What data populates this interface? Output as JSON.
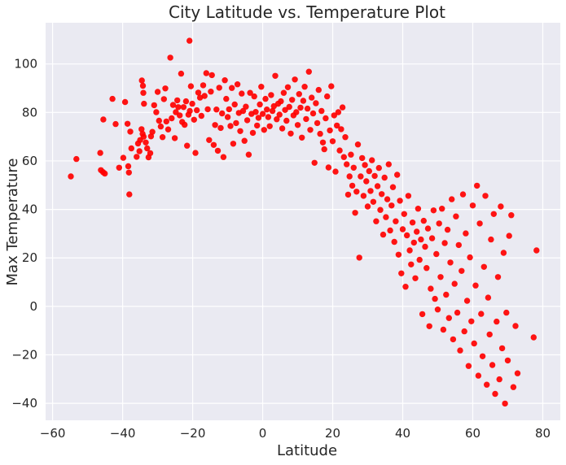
{
  "chart_data": {
    "type": "scatter",
    "title": "City Latitude vs. Temperature Plot",
    "xlabel": "Latitude",
    "ylabel": "Max Temperature",
    "xlim": [
      -62,
      85
    ],
    "ylim": [
      -47,
      117
    ],
    "x_ticks": [
      -60,
      -40,
      -20,
      0,
      20,
      40,
      60,
      80
    ],
    "y_ticks": [
      -40,
      -20,
      0,
      20,
      40,
      60,
      80,
      100
    ],
    "x_tick_labels": [
      "−60",
      "−40",
      "−20",
      "0",
      "20",
      "40",
      "60",
      "80"
    ],
    "y_tick_labels": [
      "−40",
      "−20",
      "0",
      "20",
      "40",
      "60",
      "80",
      "100"
    ],
    "grid": true,
    "colors": {
      "point": "#ff0000",
      "background": "#eaeaf2",
      "grid": "#ffffff"
    },
    "points": [
      [
        -54.8,
        53.6
      ],
      [
        -53.2,
        60.8
      ],
      [
        -46.4,
        63.3
      ],
      [
        -46.2,
        56.2
      ],
      [
        -45.6,
        55.4
      ],
      [
        -45.1,
        54.8
      ],
      [
        -45.5,
        77.1
      ],
      [
        -42.9,
        85.6
      ],
      [
        -42.0,
        75.2
      ],
      [
        -41.0,
        57.2
      ],
      [
        -39.8,
        61.3
      ],
      [
        -39.3,
        84.3
      ],
      [
        -38.6,
        75.3
      ],
      [
        -38.4,
        57.8
      ],
      [
        -38.2,
        55.2
      ],
      [
        -38.1,
        46.2
      ],
      [
        -37.8,
        72.1
      ],
      [
        -37.5,
        65.2
      ],
      [
        -36.0,
        61.7
      ],
      [
        -35.6,
        67.2
      ],
      [
        -35.2,
        64.0
      ],
      [
        -35.0,
        68.6
      ],
      [
        -34.6,
        73.1
      ],
      [
        -34.3,
        71.2
      ],
      [
        -34.0,
        70.0
      ],
      [
        -34.1,
        88.1
      ],
      [
        -34.5,
        93.2
      ],
      [
        -34.2,
        91.0
      ],
      [
        -33.9,
        83.6
      ],
      [
        -33.4,
        67.6
      ],
      [
        -33.0,
        65.2
      ],
      [
        -32.6,
        61.5
      ],
      [
        -32.1,
        63.2
      ],
      [
        -31.9,
        70.1
      ],
      [
        -31.5,
        72.0
      ],
      [
        -31.0,
        83.0
      ],
      [
        -30.4,
        80.1
      ],
      [
        -30.0,
        88.5
      ],
      [
        -29.6,
        76.6
      ],
      [
        -29.1,
        74.2
      ],
      [
        -28.6,
        69.8
      ],
      [
        -28.2,
        85.5
      ],
      [
        -27.8,
        89.9
      ],
      [
        -27.5,
        76.3
      ],
      [
        -27.0,
        73.0
      ],
      [
        -26.4,
        102.6
      ],
      [
        -26.0,
        77.6
      ],
      [
        -25.6,
        83.1
      ],
      [
        -25.1,
        69.4
      ],
      [
        -24.8,
        80.1
      ],
      [
        -24.4,
        85.0
      ],
      [
        -24.1,
        82.2
      ],
      [
        -23.7,
        78.8
      ],
      [
        -23.3,
        96.0
      ],
      [
        -23.0,
        76.1
      ],
      [
        -22.6,
        82.2
      ],
      [
        -22.3,
        74.9
      ],
      [
        -21.9,
        84.6
      ],
      [
        -21.6,
        66.3
      ],
      [
        -21.2,
        79.1
      ],
      [
        -20.8,
        80.6
      ],
      [
        -20.9,
        109.6
      ],
      [
        -20.5,
        90.8
      ],
      [
        -20.1,
        83.6
      ],
      [
        -19.6,
        77.0
      ],
      [
        -19.2,
        63.3
      ],
      [
        -18.8,
        80.9
      ],
      [
        -18.4,
        88.2
      ],
      [
        -17.9,
        86.1
      ],
      [
        -17.5,
        78.6
      ],
      [
        -17.0,
        91.2
      ],
      [
        -16.6,
        86.8
      ],
      [
        -16.1,
        96.2
      ],
      [
        -15.7,
        81.3
      ],
      [
        -15.3,
        68.6
      ],
      [
        -14.8,
        88.6
      ],
      [
        -14.5,
        95.4
      ],
      [
        -14.0,
        66.6
      ],
      [
        -13.6,
        74.8
      ],
      [
        -13.2,
        81.2
      ],
      [
        -12.8,
        64.2
      ],
      [
        -12.4,
        90.2
      ],
      [
        -12.0,
        73.6
      ],
      [
        -11.6,
        79.6
      ],
      [
        -11.2,
        61.6
      ],
      [
        -10.8,
        93.3
      ],
      [
        -10.4,
        85.6
      ],
      [
        -10.0,
        78.1
      ],
      [
        -9.6,
        81.3
      ],
      [
        -9.2,
        74.4
      ],
      [
        -8.8,
        90.1
      ],
      [
        -8.4,
        67.1
      ],
      [
        -8.0,
        83.3
      ],
      [
        -7.6,
        75.6
      ],
      [
        -7.2,
        91.6
      ],
      [
        -6.8,
        79.8
      ],
      [
        -6.4,
        72.3
      ],
      [
        -6.0,
        87.8
      ],
      [
        -5.6,
        80.6
      ],
      [
        -5.2,
        68.3
      ],
      [
        -4.8,
        82.4
      ],
      [
        -4.4,
        76.8
      ],
      [
        -4.0,
        62.6
      ],
      [
        -3.6,
        88.1
      ],
      [
        -3.2,
        79.4
      ],
      [
        -2.8,
        71.6
      ],
      [
        -2.4,
        86.6
      ],
      [
        -2.0,
        80.2
      ],
      [
        -1.6,
        74.6
      ],
      [
        -1.2,
        77.8
      ],
      [
        -0.8,
        83.3
      ],
      [
        -0.4,
        90.6
      ],
      [
        0.0,
        79.4
      ],
      [
        0.4,
        72.8
      ],
      [
        0.8,
        85.6
      ],
      [
        1.2,
        81.2
      ],
      [
        1.6,
        78.1
      ],
      [
        2.0,
        74.3
      ],
      [
        2.4,
        87.2
      ],
      [
        2.8,
        80.6
      ],
      [
        3.2,
        82.6
      ],
      [
        3.6,
        95.1
      ],
      [
        4.0,
        77.2
      ],
      [
        4.4,
        83.6
      ],
      [
        4.8,
        79.1
      ],
      [
        5.2,
        84.6
      ],
      [
        5.6,
        73.4
      ],
      [
        6.0,
        88.1
      ],
      [
        6.4,
        81.0
      ],
      [
        6.8,
        76.6
      ],
      [
        7.2,
        90.4
      ],
      [
        7.6,
        82.3
      ],
      [
        8.0,
        71.3
      ],
      [
        8.4,
        85.2
      ],
      [
        8.8,
        78.8
      ],
      [
        9.2,
        93.6
      ],
      [
        9.6,
        80.1
      ],
      [
        10.0,
        74.8
      ],
      [
        10.4,
        87.6
      ],
      [
        10.8,
        82.0
      ],
      [
        11.2,
        69.6
      ],
      [
        11.6,
        84.8
      ],
      [
        12.0,
        90.6
      ],
      [
        12.4,
        77.3
      ],
      [
        12.8,
        81.6
      ],
      [
        13.2,
        96.8
      ],
      [
        13.6,
        72.8
      ],
      [
        14.0,
        86.1
      ],
      [
        14.4,
        79.6
      ],
      [
        14.8,
        59.2
      ],
      [
        15.2,
        83.8
      ],
      [
        15.6,
        75.6
      ],
      [
        16.0,
        89.3
      ],
      [
        16.4,
        71.2
      ],
      [
        16.8,
        80.6
      ],
      [
        17.2,
        67.6
      ],
      [
        17.6,
        64.8
      ],
      [
        18.0,
        77.6
      ],
      [
        18.4,
        86.6
      ],
      [
        18.8,
        57.3
      ],
      [
        19.2,
        72.6
      ],
      [
        19.6,
        90.8
      ],
      [
        20.0,
        68.1
      ],
      [
        20.4,
        78.8
      ],
      [
        20.8,
        55.6
      ],
      [
        21.2,
        74.6
      ],
      [
        21.6,
        80.1
      ],
      [
        22.0,
        64.3
      ],
      [
        22.4,
        73.1
      ],
      [
        22.8,
        82.1
      ],
      [
        23.2,
        61.6
      ],
      [
        23.6,
        69.8
      ],
      [
        24.0,
        58.6
      ],
      [
        24.4,
        46.1
      ],
      [
        24.8,
        53.6
      ],
      [
        25.2,
        62.6
      ],
      [
        25.6,
        49.8
      ],
      [
        26.0,
        57.2
      ],
      [
        26.4,
        38.6
      ],
      [
        26.8,
        47.3
      ],
      [
        27.2,
        66.8
      ],
      [
        27.6,
        20.1
      ],
      [
        28.0,
        53.6
      ],
      [
        28.4,
        61.2
      ],
      [
        28.8,
        45.6
      ],
      [
        29.2,
        58.3
      ],
      [
        29.6,
        51.6
      ],
      [
        30.0,
        41.2
      ],
      [
        30.4,
        55.8
      ],
      [
        30.8,
        47.6
      ],
      [
        31.2,
        60.3
      ],
      [
        31.6,
        43.1
      ],
      [
        32.0,
        53.8
      ],
      [
        32.4,
        35.1
      ],
      [
        32.8,
        49.6
      ],
      [
        33.2,
        57.1
      ],
      [
        33.6,
        39.8
      ],
      [
        34.0,
        46.3
      ],
      [
        34.4,
        29.6
      ],
      [
        34.8,
        53.1
      ],
      [
        35.2,
        36.8
      ],
      [
        35.6,
        44.2
      ],
      [
        36.0,
        58.6
      ],
      [
        36.4,
        31.3
      ],
      [
        36.8,
        41.6
      ],
      [
        37.2,
        49.2
      ],
      [
        37.6,
        26.6
      ],
      [
        38.0,
        35.1
      ],
      [
        38.4,
        54.3
      ],
      [
        38.8,
        21.3
      ],
      [
        39.2,
        43.6
      ],
      [
        39.6,
        13.6
      ],
      [
        40.0,
        31.8
      ],
      [
        40.4,
        38.1
      ],
      [
        40.8,
        8.1
      ],
      [
        41.2,
        29.3
      ],
      [
        41.6,
        45.6
      ],
      [
        42.0,
        23.1
      ],
      [
        42.4,
        17.3
      ],
      [
        42.8,
        34.6
      ],
      [
        43.2,
        26.3
      ],
      [
        43.6,
        11.6
      ],
      [
        44.0,
        30.8
      ],
      [
        44.4,
        40.3
      ],
      [
        44.8,
        19.2
      ],
      [
        45.2,
        27.6
      ],
      [
        45.6,
        -3.2
      ],
      [
        46.0,
        35.3
      ],
      [
        46.4,
        24.6
      ],
      [
        46.8,
        15.8
      ],
      [
        47.2,
        32.1
      ],
      [
        47.6,
        -8.2
      ],
      [
        48.0,
        7.3
      ],
      [
        48.4,
        28.1
      ],
      [
        48.8,
        39.6
      ],
      [
        49.2,
        3.1
      ],
      [
        49.6,
        21.6
      ],
      [
        50.0,
        -1.3
      ],
      [
        50.4,
        34.2
      ],
      [
        50.8,
        12.1
      ],
      [
        51.2,
        40.3
      ],
      [
        51.6,
        -9.6
      ],
      [
        52.0,
        26.1
      ],
      [
        52.4,
        4.8
      ],
      [
        52.8,
        31.6
      ],
      [
        53.2,
        -4.8
      ],
      [
        53.6,
        18.1
      ],
      [
        54.0,
        44.2
      ],
      [
        54.4,
        -13.6
      ],
      [
        54.8,
        9.3
      ],
      [
        55.2,
        37.1
      ],
      [
        55.6,
        -2.6
      ],
      [
        56.0,
        25.3
      ],
      [
        56.4,
        -18.2
      ],
      [
        56.8,
        14.6
      ],
      [
        57.2,
        46.2
      ],
      [
        57.6,
        -10.3
      ],
      [
        58.0,
        30.1
      ],
      [
        58.4,
        2.3
      ],
      [
        58.8,
        -24.6
      ],
      [
        59.2,
        20.2
      ],
      [
        59.6,
        -6.2
      ],
      [
        60.0,
        41.6
      ],
      [
        60.4,
        -15.3
      ],
      [
        60.8,
        8.6
      ],
      [
        61.2,
        49.8
      ],
      [
        61.6,
        -28.6
      ],
      [
        62.0,
        34.2
      ],
      [
        62.4,
        -3.1
      ],
      [
        62.8,
        -20.6
      ],
      [
        63.2,
        16.3
      ],
      [
        63.6,
        45.6
      ],
      [
        64.0,
        -32.3
      ],
      [
        64.4,
        3.6
      ],
      [
        64.8,
        -11.6
      ],
      [
        65.2,
        27.6
      ],
      [
        65.6,
        -24.2
      ],
      [
        66.0,
        38.1
      ],
      [
        66.4,
        -36.1
      ],
      [
        66.8,
        -6.3
      ],
      [
        67.2,
        12.1
      ],
      [
        67.6,
        -30.1
      ],
      [
        68.0,
        41.2
      ],
      [
        68.4,
        -17.3
      ],
      [
        68.8,
        22.1
      ],
      [
        69.2,
        -40.1
      ],
      [
        69.6,
        -2.6
      ],
      [
        70.0,
        -22.3
      ],
      [
        70.4,
        29.1
      ],
      [
        71.0,
        37.6
      ],
      [
        71.6,
        -33.3
      ],
      [
        72.2,
        -8.1
      ],
      [
        72.8,
        -27.6
      ],
      [
        77.4,
        -12.8
      ],
      [
        78.2,
        23.1
      ]
    ]
  }
}
